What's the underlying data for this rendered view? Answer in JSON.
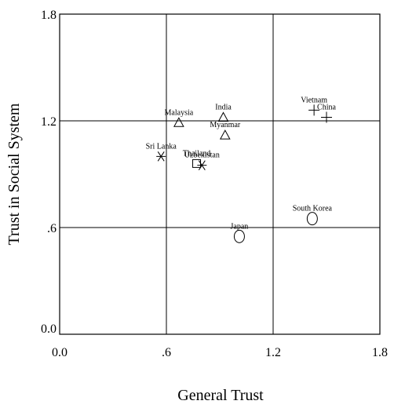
{
  "chart_data": {
    "type": "scatter",
    "title": "",
    "xlabel": "General Trust",
    "ylabel": "Trust in  Social System",
    "xlim": [
      0,
      1.8
    ],
    "ylim": [
      0,
      1.8
    ],
    "x_ticks": [
      {
        "value": 0,
        "label": "0.0"
      },
      {
        "value": 0.6,
        "label": ".6"
      },
      {
        "value": 1.2,
        "label": "1.2"
      },
      {
        "value": 1.8,
        "label": "1.8"
      }
    ],
    "y_ticks": [
      {
        "value": 0,
        "label": "0.0"
      },
      {
        "value": 0.6,
        "label": ".6"
      },
      {
        "value": 1.2,
        "label": "1.2"
      },
      {
        "value": 1.8,
        "label": "1.8"
      }
    ],
    "grid": true,
    "points": [
      {
        "label": "Malaysia",
        "x": 0.67,
        "y": 1.19,
        "marker": "triangle"
      },
      {
        "label": "India",
        "x": 0.92,
        "y": 1.22,
        "marker": "triangle"
      },
      {
        "label": "Myanmar",
        "x": 0.93,
        "y": 1.12,
        "marker": "triangle"
      },
      {
        "label": "Vietnam",
        "x": 1.43,
        "y": 1.26,
        "marker": "plus"
      },
      {
        "label": "China",
        "x": 1.5,
        "y": 1.22,
        "marker": "plus"
      },
      {
        "label": "Sri Lanka",
        "x": 0.57,
        "y": 1.0,
        "marker": "asterisk"
      },
      {
        "label": "Thailand",
        "x": 0.77,
        "y": 0.96,
        "marker": "square"
      },
      {
        "label": "Uzbekistan",
        "x": 0.8,
        "y": 0.95,
        "marker": "asterisk"
      },
      {
        "label": "South Korea",
        "x": 1.42,
        "y": 0.65,
        "marker": "circle"
      },
      {
        "label": "Japan",
        "x": 1.01,
        "y": 0.55,
        "marker": "circle"
      }
    ]
  }
}
